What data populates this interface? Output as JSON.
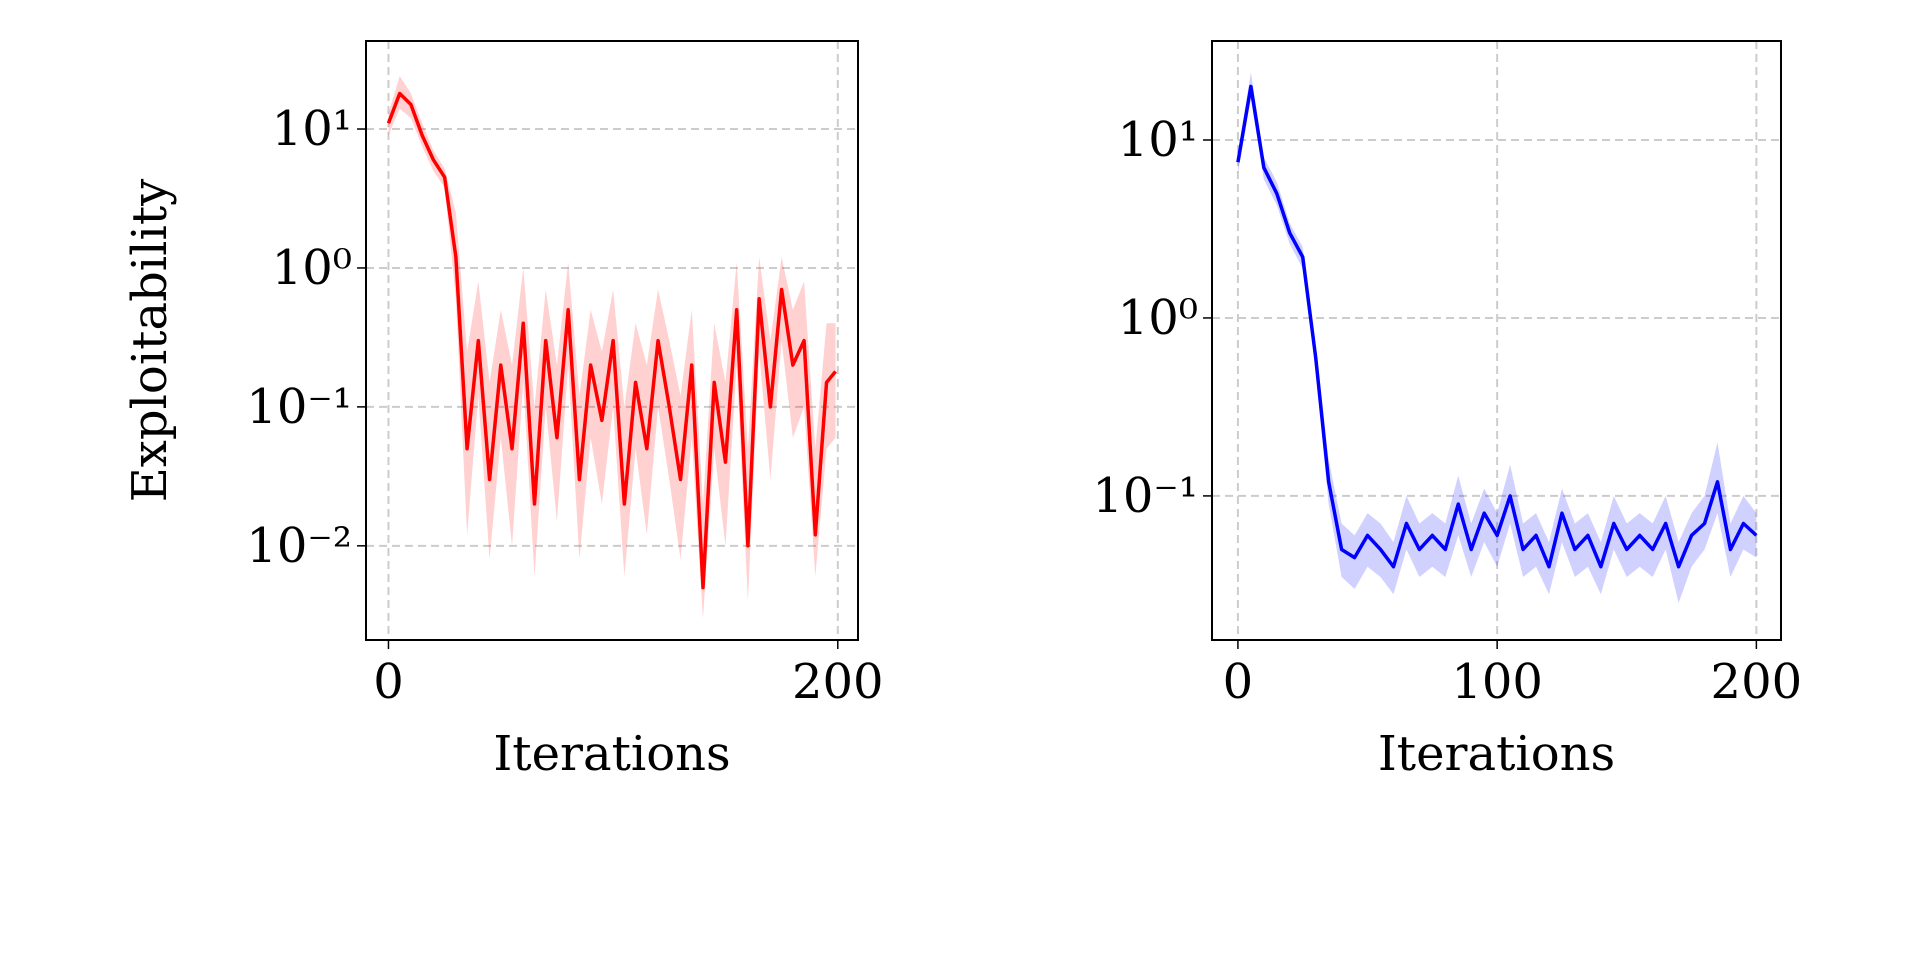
{
  "chart_data": [
    {
      "type": "line",
      "xlabel": "Iterations",
      "ylabel": "Exploitability",
      "yscale": "log",
      "grid": true,
      "xlim": [
        -10,
        209
      ],
      "ylim": [
        0.0021,
        43
      ],
      "xticks": [
        0,
        200
      ],
      "yticks": [
        {
          "value": 0.01,
          "label": "10⁻²"
        },
        {
          "value": 0.1,
          "label": "10⁻¹"
        },
        {
          "value": 1,
          "label": "10⁰"
        },
        {
          "value": 10,
          "label": "10¹"
        }
      ],
      "x": [
        0,
        5,
        10,
        15,
        20,
        25,
        30,
        35,
        40,
        45,
        50,
        55,
        60,
        65,
        70,
        75,
        80,
        85,
        90,
        95,
        100,
        105,
        110,
        115,
        120,
        125,
        130,
        135,
        140,
        145,
        150,
        155,
        160,
        165,
        170,
        175,
        180,
        185,
        190,
        195,
        199
      ],
      "series": [
        {
          "color": "#ff0000",
          "values": [
            11,
            18,
            15,
            9,
            6,
            4.5,
            1.2,
            0.05,
            0.3,
            0.03,
            0.2,
            0.05,
            0.4,
            0.02,
            0.3,
            0.06,
            0.5,
            0.03,
            0.2,
            0.08,
            0.3,
            0.02,
            0.15,
            0.05,
            0.3,
            0.1,
            0.03,
            0.2,
            0.005,
            0.15,
            0.04,
            0.5,
            0.01,
            0.6,
            0.1,
            0.7,
            0.2,
            0.3,
            0.012,
            0.15,
            0.18
          ],
          "lower": [
            9,
            14,
            12,
            7.5,
            5,
            3.8,
            0.6,
            0.012,
            0.12,
            0.008,
            0.06,
            0.01,
            0.15,
            0.006,
            0.1,
            0.015,
            0.2,
            0.008,
            0.06,
            0.02,
            0.1,
            0.006,
            0.05,
            0.012,
            0.1,
            0.03,
            0.008,
            0.06,
            0.003,
            0.05,
            0.01,
            0.2,
            0.004,
            0.25,
            0.03,
            0.3,
            0.06,
            0.1,
            0.006,
            0.05,
            0.06
          ],
          "upper": [
            13,
            24,
            18,
            11,
            7,
            5.2,
            2.5,
            0.25,
            0.8,
            0.15,
            0.5,
            0.2,
            1,
            0.1,
            0.7,
            0.2,
            1.1,
            0.12,
            0.5,
            0.25,
            0.7,
            0.1,
            0.4,
            0.2,
            0.7,
            0.3,
            0.12,
            0.5,
            0.02,
            0.4,
            0.15,
            1.1,
            0.05,
            1.2,
            0.3,
            1.2,
            0.5,
            0.8,
            0.05,
            0.4,
            0.4
          ]
        }
      ]
    },
    {
      "type": "line",
      "xlabel": "Iterations",
      "yscale": "log",
      "grid": true,
      "xlim": [
        -10,
        209.5
      ],
      "ylim": [
        0.0155,
        36
      ],
      "xticks": [
        0,
        100,
        200
      ],
      "yticks": [
        {
          "value": 0.1,
          "label": "10⁻¹"
        },
        {
          "value": 1,
          "label": "10⁰"
        },
        {
          "value": 10,
          "label": "10¹"
        }
      ],
      "x": [
        0,
        5,
        10,
        15,
        20,
        25,
        30,
        35,
        40,
        45,
        50,
        55,
        60,
        65,
        70,
        75,
        80,
        85,
        90,
        95,
        100,
        105,
        110,
        115,
        120,
        125,
        130,
        135,
        140,
        145,
        150,
        155,
        160,
        165,
        170,
        175,
        180,
        185,
        190,
        195,
        200
      ],
      "series": [
        {
          "color": "#0000ff",
          "values": [
            7.5,
            20,
            7,
            5,
            3,
            2.2,
            0.6,
            0.12,
            0.05,
            0.045,
            0.06,
            0.05,
            0.04,
            0.07,
            0.05,
            0.06,
            0.05,
            0.09,
            0.05,
            0.08,
            0.06,
            0.1,
            0.05,
            0.06,
            0.04,
            0.08,
            0.05,
            0.06,
            0.04,
            0.07,
            0.05,
            0.06,
            0.05,
            0.07,
            0.04,
            0.06,
            0.07,
            0.12,
            0.05,
            0.07,
            0.06
          ],
          "lower": [
            6.5,
            17,
            6,
            4.3,
            2.6,
            1.9,
            0.5,
            0.09,
            0.035,
            0.03,
            0.04,
            0.035,
            0.028,
            0.05,
            0.035,
            0.04,
            0.035,
            0.06,
            0.035,
            0.055,
            0.04,
            0.07,
            0.035,
            0.04,
            0.028,
            0.055,
            0.035,
            0.04,
            0.028,
            0.05,
            0.035,
            0.04,
            0.035,
            0.05,
            0.025,
            0.04,
            0.05,
            0.08,
            0.035,
            0.05,
            0.045
          ],
          "upper": [
            8.5,
            24,
            8,
            5.8,
            3.4,
            2.5,
            0.7,
            0.16,
            0.07,
            0.06,
            0.08,
            0.07,
            0.055,
            0.1,
            0.07,
            0.08,
            0.07,
            0.13,
            0.07,
            0.11,
            0.08,
            0.15,
            0.07,
            0.08,
            0.055,
            0.11,
            0.07,
            0.08,
            0.055,
            0.1,
            0.07,
            0.08,
            0.07,
            0.1,
            0.055,
            0.08,
            0.1,
            0.2,
            0.07,
            0.1,
            0.08
          ]
        }
      ]
    }
  ]
}
